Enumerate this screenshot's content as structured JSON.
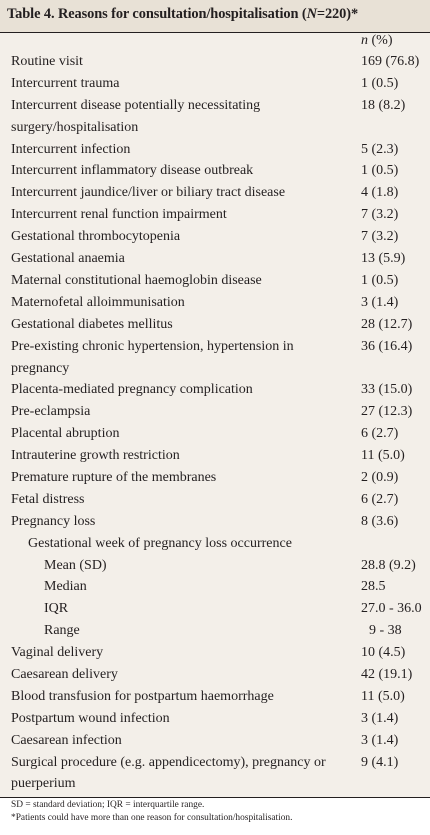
{
  "table": {
    "title_prefix": "Table 4. Reasons for consultation/hospitalisation (",
    "title_n_label": "N",
    "title_suffix": "=220)*",
    "col_n": "n",
    "col_suffix": " (%)",
    "rows": [
      {
        "label": "Routine visit",
        "value": "169 (76.8)",
        "level": 0
      },
      {
        "label": "Intercurrent trauma",
        "value": "1 (0.5)",
        "level": 0
      },
      {
        "label": "Intercurrent disease potentially necessitating surgery/hospitalisation",
        "value": "18 (8.2)",
        "level": 0
      },
      {
        "label": "Intercurrent infection",
        "value": "5 (2.3)",
        "level": 0
      },
      {
        "label": "Intercurrent inflammatory disease outbreak",
        "value": "1 (0.5)",
        "level": 0
      },
      {
        "label": "Intercurrent jaundice/liver or biliary tract disease",
        "value": "4 (1.8)",
        "level": 0
      },
      {
        "label": "Intercurrent renal function impairment",
        "value": "7 (3.2)",
        "level": 0
      },
      {
        "label": "Gestational thrombocytopenia",
        "value": "7 (3.2)",
        "level": 0
      },
      {
        "label": "Gestational anaemia",
        "value": "13 (5.9)",
        "level": 0
      },
      {
        "label": "Maternal constitutional haemoglobin disease",
        "value": "1 (0.5)",
        "level": 0
      },
      {
        "label": "Maternofetal alloimmunisation",
        "value": "3 (1.4)",
        "level": 0
      },
      {
        "label": "Gestational diabetes mellitus",
        "value": "28 (12.7)",
        "level": 0
      },
      {
        "label": "Pre-existing chronic hypertension, hypertension in pregnancy",
        "value": "36 (16.4)",
        "level": 0
      },
      {
        "label": "Placenta-mediated pregnancy complication",
        "value": "33 (15.0)",
        "level": 0
      },
      {
        "label": "Pre-eclampsia",
        "value": "27 (12.3)",
        "level": 0
      },
      {
        "label": "Placental abruption",
        "value": "6 (2.7)",
        "level": 0
      },
      {
        "label": "Intrauterine growth restriction",
        "value": "11 (5.0)",
        "level": 0
      },
      {
        "label": "Premature rupture of the membranes",
        "value": "2 (0.9)",
        "level": 0
      },
      {
        "label": "Fetal distress",
        "value": "6 (2.7)",
        "level": 0
      },
      {
        "label": "Pregnancy loss",
        "value": "8 (3.6)",
        "level": 0
      },
      {
        "label": "Gestational week of pregnancy loss occurrence",
        "value": "",
        "level": 1
      },
      {
        "label": "Mean (SD)",
        "value": "28.8 (9.2)",
        "level": 2
      },
      {
        "label": "Median",
        "value": "28.5",
        "level": 2
      },
      {
        "label": "IQR",
        "value": "27.0 - 36.0",
        "level": 2
      },
      {
        "label": "Range",
        "value": "9 - 38",
        "level": 2,
        "indent_value": true
      },
      {
        "label": "Vaginal delivery",
        "value": "10 (4.5)",
        "level": 0
      },
      {
        "label": "Caesarean delivery",
        "value": "42 (19.1)",
        "level": 0
      },
      {
        "label": "Blood transfusion for postpartum haemorrhage",
        "value": "11 (5.0)",
        "level": 0
      },
      {
        "label": "Postpartum wound infection",
        "value": "3 (1.4)",
        "level": 0
      },
      {
        "label": "Caesarean infection",
        "value": "3 (1.4)",
        "level": 0
      },
      {
        "label": "Surgical procedure (e.g. appendicectomy), pregnancy or puerperium",
        "value": "9 (4.1)",
        "level": 0
      }
    ],
    "footnote_1": "SD = standard deviation; IQR = interquartile range.",
    "footnote_2": "*Patients could have more than one reason for consultation/hospitalisation."
  },
  "colors": {
    "title_bg": "#e8e1d6",
    "body_bg": "#f3efe9",
    "text": "#231f20"
  }
}
